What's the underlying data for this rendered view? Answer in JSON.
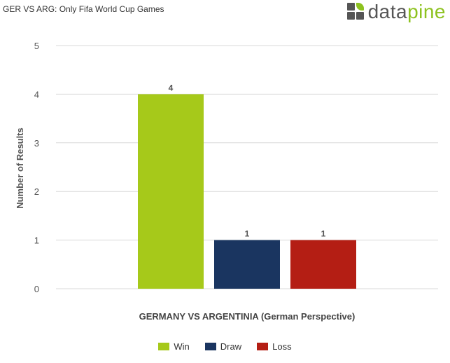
{
  "title": "GER VS ARG: Only Fifa World Cup Games",
  "logo": {
    "text_main": "data",
    "text_accent": "pine",
    "icon": "datapine-logo-icon"
  },
  "colors": {
    "win": "#a6c91a",
    "draw": "#1a3560",
    "loss": "#b41e14",
    "grid": "#d9d9d9",
    "logo_green": "#8dc21f",
    "logo_gray": "#555555"
  },
  "chart_data": {
    "type": "bar",
    "title": "GER VS ARG: Only Fifa World Cup Games",
    "xlabel": "GERMANY VS ARGENTINIA (German Perspective)",
    "ylabel": "Number of Results",
    "ylim": [
      0,
      5
    ],
    "yticks": [
      0,
      1,
      2,
      3,
      4,
      5
    ],
    "grid": true,
    "legend_position": "bottom",
    "categories": [
      "GERMANY VS ARGENTINIA (German Perspective)"
    ],
    "series": [
      {
        "name": "Win",
        "values": [
          4
        ],
        "color": "#a6c91a"
      },
      {
        "name": "Draw",
        "values": [
          1
        ],
        "color": "#1a3560"
      },
      {
        "name": "Loss",
        "values": [
          1
        ],
        "color": "#b41e14"
      }
    ]
  }
}
